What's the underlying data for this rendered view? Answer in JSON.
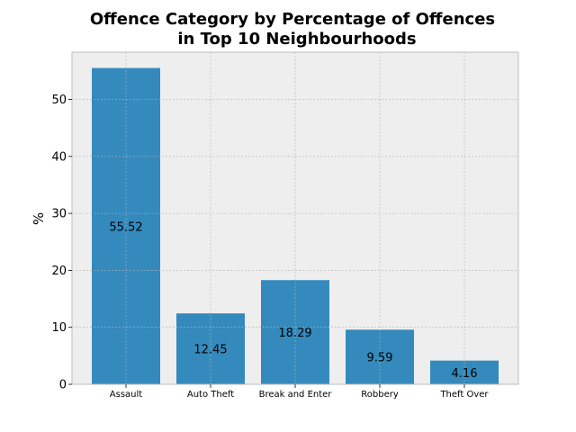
{
  "chart_data": {
    "type": "bar",
    "title_lines": [
      "Offence Category by Percentage of Offences",
      "in Top 10 Neighbourhoods"
    ],
    "xlabel": "",
    "ylabel": "%",
    "categories": [
      "Assault",
      "Auto Theft",
      "Break and Enter",
      "Robbery",
      "Theft Over"
    ],
    "values": [
      55.52,
      12.45,
      18.29,
      9.59,
      4.16
    ],
    "data_labels": [
      "55.52",
      "12.45",
      "18.29",
      "9.59",
      "4.16"
    ],
    "ylim": [
      0,
      58.3
    ],
    "yticks": [
      0,
      10,
      20,
      30,
      40,
      50
    ],
    "grid": true,
    "colors": {
      "bar": "#348abd",
      "plot_bg": "#eeeeee",
      "grid": "#b2b2b2",
      "frame": "#bcbcbc"
    }
  }
}
